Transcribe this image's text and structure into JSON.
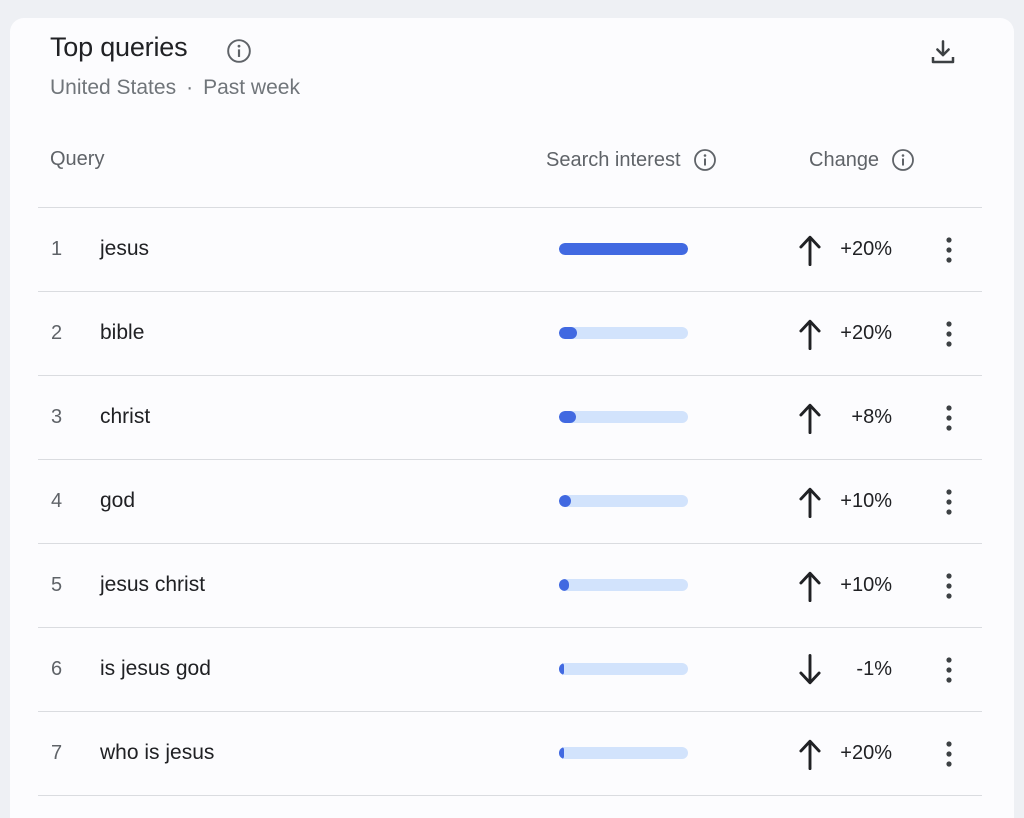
{
  "header": {
    "title": "Top queries",
    "region": "United States",
    "separator": "·",
    "period": "Past week"
  },
  "icons": {
    "info": "info-icon",
    "download": "download-icon",
    "more": "more-vert-icon",
    "up": "arrow-up-icon",
    "down": "arrow-down-icon"
  },
  "columns": {
    "query": "Query",
    "interest": "Search interest",
    "change": "Change"
  },
  "colors": {
    "bar_fill": "#4169e1",
    "bar_track": "#d2e3fc"
  },
  "rows": [
    {
      "rank": "1",
      "query": "jesus",
      "interest": 100,
      "change": "+20%",
      "direction": "up"
    },
    {
      "rank": "2",
      "query": "bible",
      "interest": 14,
      "change": "+20%",
      "direction": "up"
    },
    {
      "rank": "3",
      "query": "christ",
      "interest": 13,
      "change": "+8%",
      "direction": "up"
    },
    {
      "rank": "4",
      "query": "god",
      "interest": 9,
      "change": "+10%",
      "direction": "up"
    },
    {
      "rank": "5",
      "query": "jesus christ",
      "interest": 8,
      "change": "+10%",
      "direction": "up"
    },
    {
      "rank": "6",
      "query": "is jesus god",
      "interest": 4,
      "change": "-1%",
      "direction": "down"
    },
    {
      "rank": "7",
      "query": "who is jesus",
      "interest": 4,
      "change": "+20%",
      "direction": "up"
    }
  ]
}
